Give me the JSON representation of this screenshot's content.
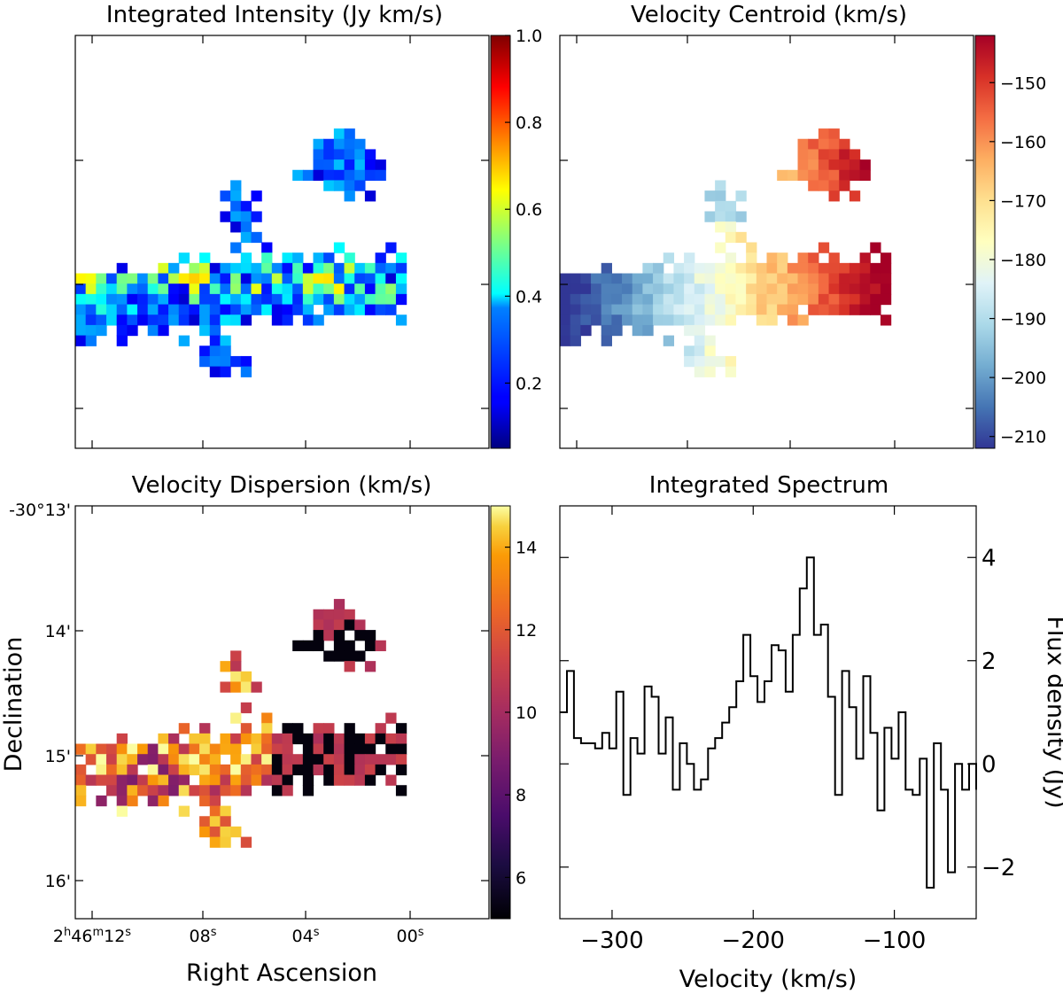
{
  "chart_data": [
    {
      "type": "heatmap",
      "title": "Integrated Intensity (Jy km/s)",
      "colormap": "jet",
      "colorbar": {
        "range": [
          0.05,
          1.0
        ],
        "ticks": [
          "1.0",
          "0.8",
          "0.6",
          "0.4",
          "0.2"
        ],
        "tick_values": [
          1.0,
          0.8,
          0.6,
          0.4,
          0.2
        ]
      },
      "grid": false
    },
    {
      "type": "heatmap",
      "title": "Velocity Centroid (km/s)",
      "colormap": "RdYlBu_r",
      "colorbar": {
        "range": [
          -212,
          -142
        ],
        "ticks": [
          "−150",
          "−160",
          "−170",
          "−180",
          "−190",
          "−200",
          "−210"
        ],
        "tick_values": [
          -150,
          -160,
          -170,
          -180,
          -190,
          -200,
          -210
        ]
      },
      "grid": false
    },
    {
      "type": "heatmap",
      "title": "Velocity Dispersion (km/s)",
      "colormap": "inferno",
      "xlabel": "Right Ascension",
      "ylabel": "Declination",
      "xticks": [
        "2h46m12s",
        "08s",
        "04s",
        "00s"
      ],
      "xtick_parts": [
        {
          "main": "2",
          "sup1": "h",
          "mid": "46",
          "sup2": "m",
          "end": "12",
          "sup3": "s"
        },
        {
          "main": "08",
          "sup3": "s"
        },
        {
          "main": "04",
          "sup3": "s"
        },
        {
          "main": "00",
          "sup3": "s"
        }
      ],
      "yticks": [
        "-30°13'",
        "14'",
        "15'",
        "16'"
      ],
      "colorbar": {
        "range": [
          5,
          15
        ],
        "ticks": [
          "14",
          "12",
          "10",
          "8",
          "6"
        ],
        "tick_values": [
          14,
          12,
          10,
          8,
          6
        ]
      },
      "grid": false
    },
    {
      "type": "line",
      "style": "step",
      "title": "Integrated Spectrum",
      "xlabel": "Velocity (km/s)",
      "ylabel": "Flux density (Jy)",
      "xlim": [
        -337,
        -42
      ],
      "ylim": [
        -3,
        5
      ],
      "xticks": [
        "−300",
        "−200",
        "−100"
      ],
      "xtick_values": [
        -300,
        -200,
        -100
      ],
      "yticks": [
        "4",
        "2",
        "0",
        "−2"
      ],
      "ytick_values": [
        4,
        2,
        0,
        -2
      ],
      "x": [
        -337,
        -332,
        -327,
        -322,
        -317,
        -312,
        -307,
        -302,
        -297,
        -292,
        -287,
        -282,
        -277,
        -272,
        -267,
        -262,
        -257,
        -252,
        -247,
        -242,
        -237,
        -232,
        -227,
        -222,
        -217,
        -212,
        -207,
        -202,
        -197,
        -192,
        -187,
        -182,
        -177,
        -172,
        -167,
        -162,
        -157,
        -152,
        -147,
        -142,
        -137,
        -132,
        -127,
        -122,
        -117,
        -112,
        -107,
        -102,
        -97,
        -92,
        -87,
        -82,
        -77,
        -72,
        -67,
        -62,
        -57,
        -52,
        -47,
        -42
      ],
      "series": [
        {
          "values": [
            1.0,
            1.8,
            0.5,
            0.4,
            0.4,
            0.3,
            0.6,
            0.3,
            1.4,
            -0.6,
            0.5,
            0.2,
            1.5,
            1.3,
            0.2,
            0.9,
            -0.5,
            0.4,
            0.0,
            -0.5,
            -0.3,
            0.3,
            0.5,
            0.8,
            1.1,
            1.6,
            2.5,
            1.7,
            1.2,
            1.6,
            2.3,
            2.2,
            1.4,
            2.5,
            3.4,
            4.0,
            2.5,
            2.7,
            1.3,
            -0.6,
            1.8,
            1.1,
            0.1,
            1.7,
            0.6,
            -0.9,
            0.7,
            0.1,
            1.0,
            -0.5,
            -0.6,
            0.1,
            -2.4,
            0.4,
            -0.5,
            -2.1,
            0.0,
            -0.5,
            0.0,
            -0.5
          ],
          "color": "#000000"
        }
      ]
    }
  ]
}
